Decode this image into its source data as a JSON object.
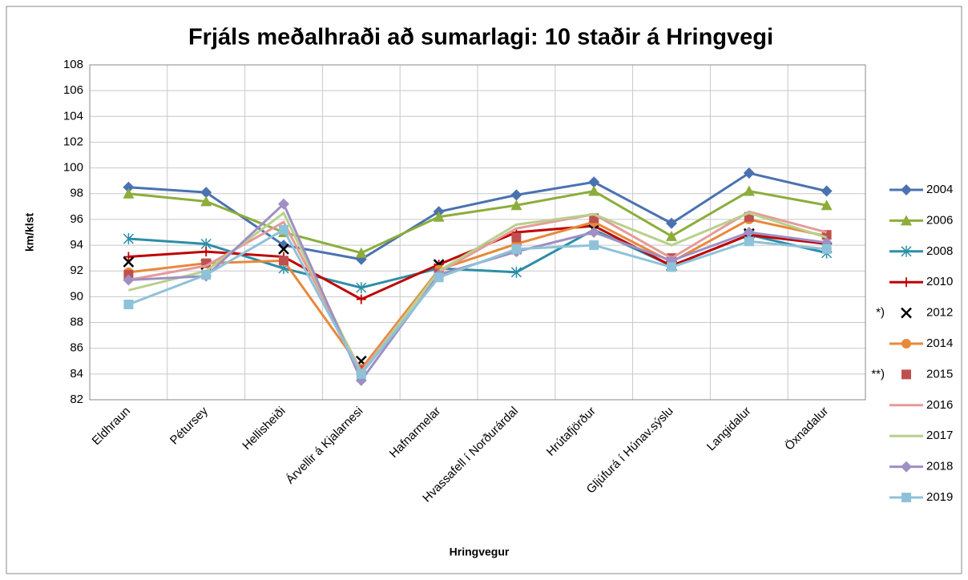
{
  "chart_data": {
    "type": "line",
    "title": "Frjáls meðalhraði að sumarlagi: 10 staðir á Hringvegi",
    "xlabel": "Hringvegur",
    "ylabel": "km/klst",
    "categories": [
      "Eldhraun",
      "Pétursey",
      "Hellisheiði",
      "Árvellir á Kjalarnesi",
      "Hafnarmelar",
      "Hvassafell í Norðurárdal",
      "Hrútafjörður",
      "Gljúfurá í Húnav.sýslu",
      "Langidalur",
      "Öxnadalur"
    ],
    "ylim": [
      82,
      108
    ],
    "yticks": [
      82,
      84,
      86,
      88,
      90,
      92,
      94,
      96,
      98,
      100,
      102,
      104,
      106,
      108
    ],
    "grid": true,
    "legend": "right",
    "series": [
      {
        "name": "2004",
        "color": "#4a72b0",
        "marker": "diamond",
        "values": [
          98.5,
          98.1,
          94.0,
          92.9,
          96.6,
          97.9,
          98.9,
          95.7,
          99.6,
          98.2
        ]
      },
      {
        "name": "2006",
        "color": "#8cad3b",
        "marker": "triangle",
        "values": [
          98.0,
          97.4,
          95.0,
          93.4,
          96.2,
          97.1,
          98.2,
          94.7,
          98.2,
          97.1
        ]
      },
      {
        "name": "2008",
        "color": "#2c8ea8",
        "marker": "star",
        "values": [
          94.5,
          94.1,
          92.2,
          90.7,
          92.2,
          91.9,
          95.2,
          92.4,
          94.8,
          93.4
        ]
      },
      {
        "name": "2010",
        "color": "#c00000",
        "marker": "plus",
        "values": [
          93.1,
          93.5,
          93.1,
          89.8,
          92.5,
          95.0,
          95.5,
          92.4,
          94.8,
          94.1
        ]
      },
      {
        "name": "2012",
        "color": "#000000",
        "marker": "x",
        "line": false,
        "note": "*)",
        "values": [
          92.7,
          92.5,
          93.7,
          85.0,
          92.5,
          93.7,
          95.2,
          92.4,
          94.9,
          93.8
        ]
      },
      {
        "name": "2014",
        "color": "#e8883a",
        "marker": "circle",
        "values": [
          91.9,
          92.6,
          92.8,
          84.4,
          92.1,
          94.1,
          95.8,
          92.7,
          96.0,
          94.7
        ]
      },
      {
        "name": "2015",
        "color": "#c0504d",
        "marker": "square",
        "line": false,
        "note": "**)",
        "values": [
          91.7,
          92.6,
          92.8,
          84.3,
          91.8,
          94.6,
          96.1,
          93.0,
          96.2,
          94.8
        ]
      },
      {
        "name": "2016",
        "color": "#e59a9a",
        "marker": "none",
        "values": [
          91.3,
          92.4,
          95.8,
          84.2,
          91.9,
          95.3,
          96.4,
          93.0,
          96.6,
          95.0
        ]
      },
      {
        "name": "2017",
        "color": "#b8d08c",
        "marker": "none",
        "values": [
          90.5,
          92.0,
          96.5,
          84.0,
          92.0,
          95.6,
          96.4,
          94.0,
          96.5,
          94.6
        ]
      },
      {
        "name": "2018",
        "color": "#9f8fc3",
        "marker": "diamond",
        "values": [
          91.3,
          91.6,
          97.2,
          83.5,
          91.7,
          93.5,
          95.0,
          92.8,
          95.0,
          94.2
        ]
      },
      {
        "name": "2019",
        "color": "#8ec2d9",
        "marker": "square",
        "values": [
          89.4,
          91.7,
          95.2,
          84.0,
          91.5,
          93.7,
          94.0,
          92.3,
          94.3,
          93.7
        ]
      }
    ]
  }
}
